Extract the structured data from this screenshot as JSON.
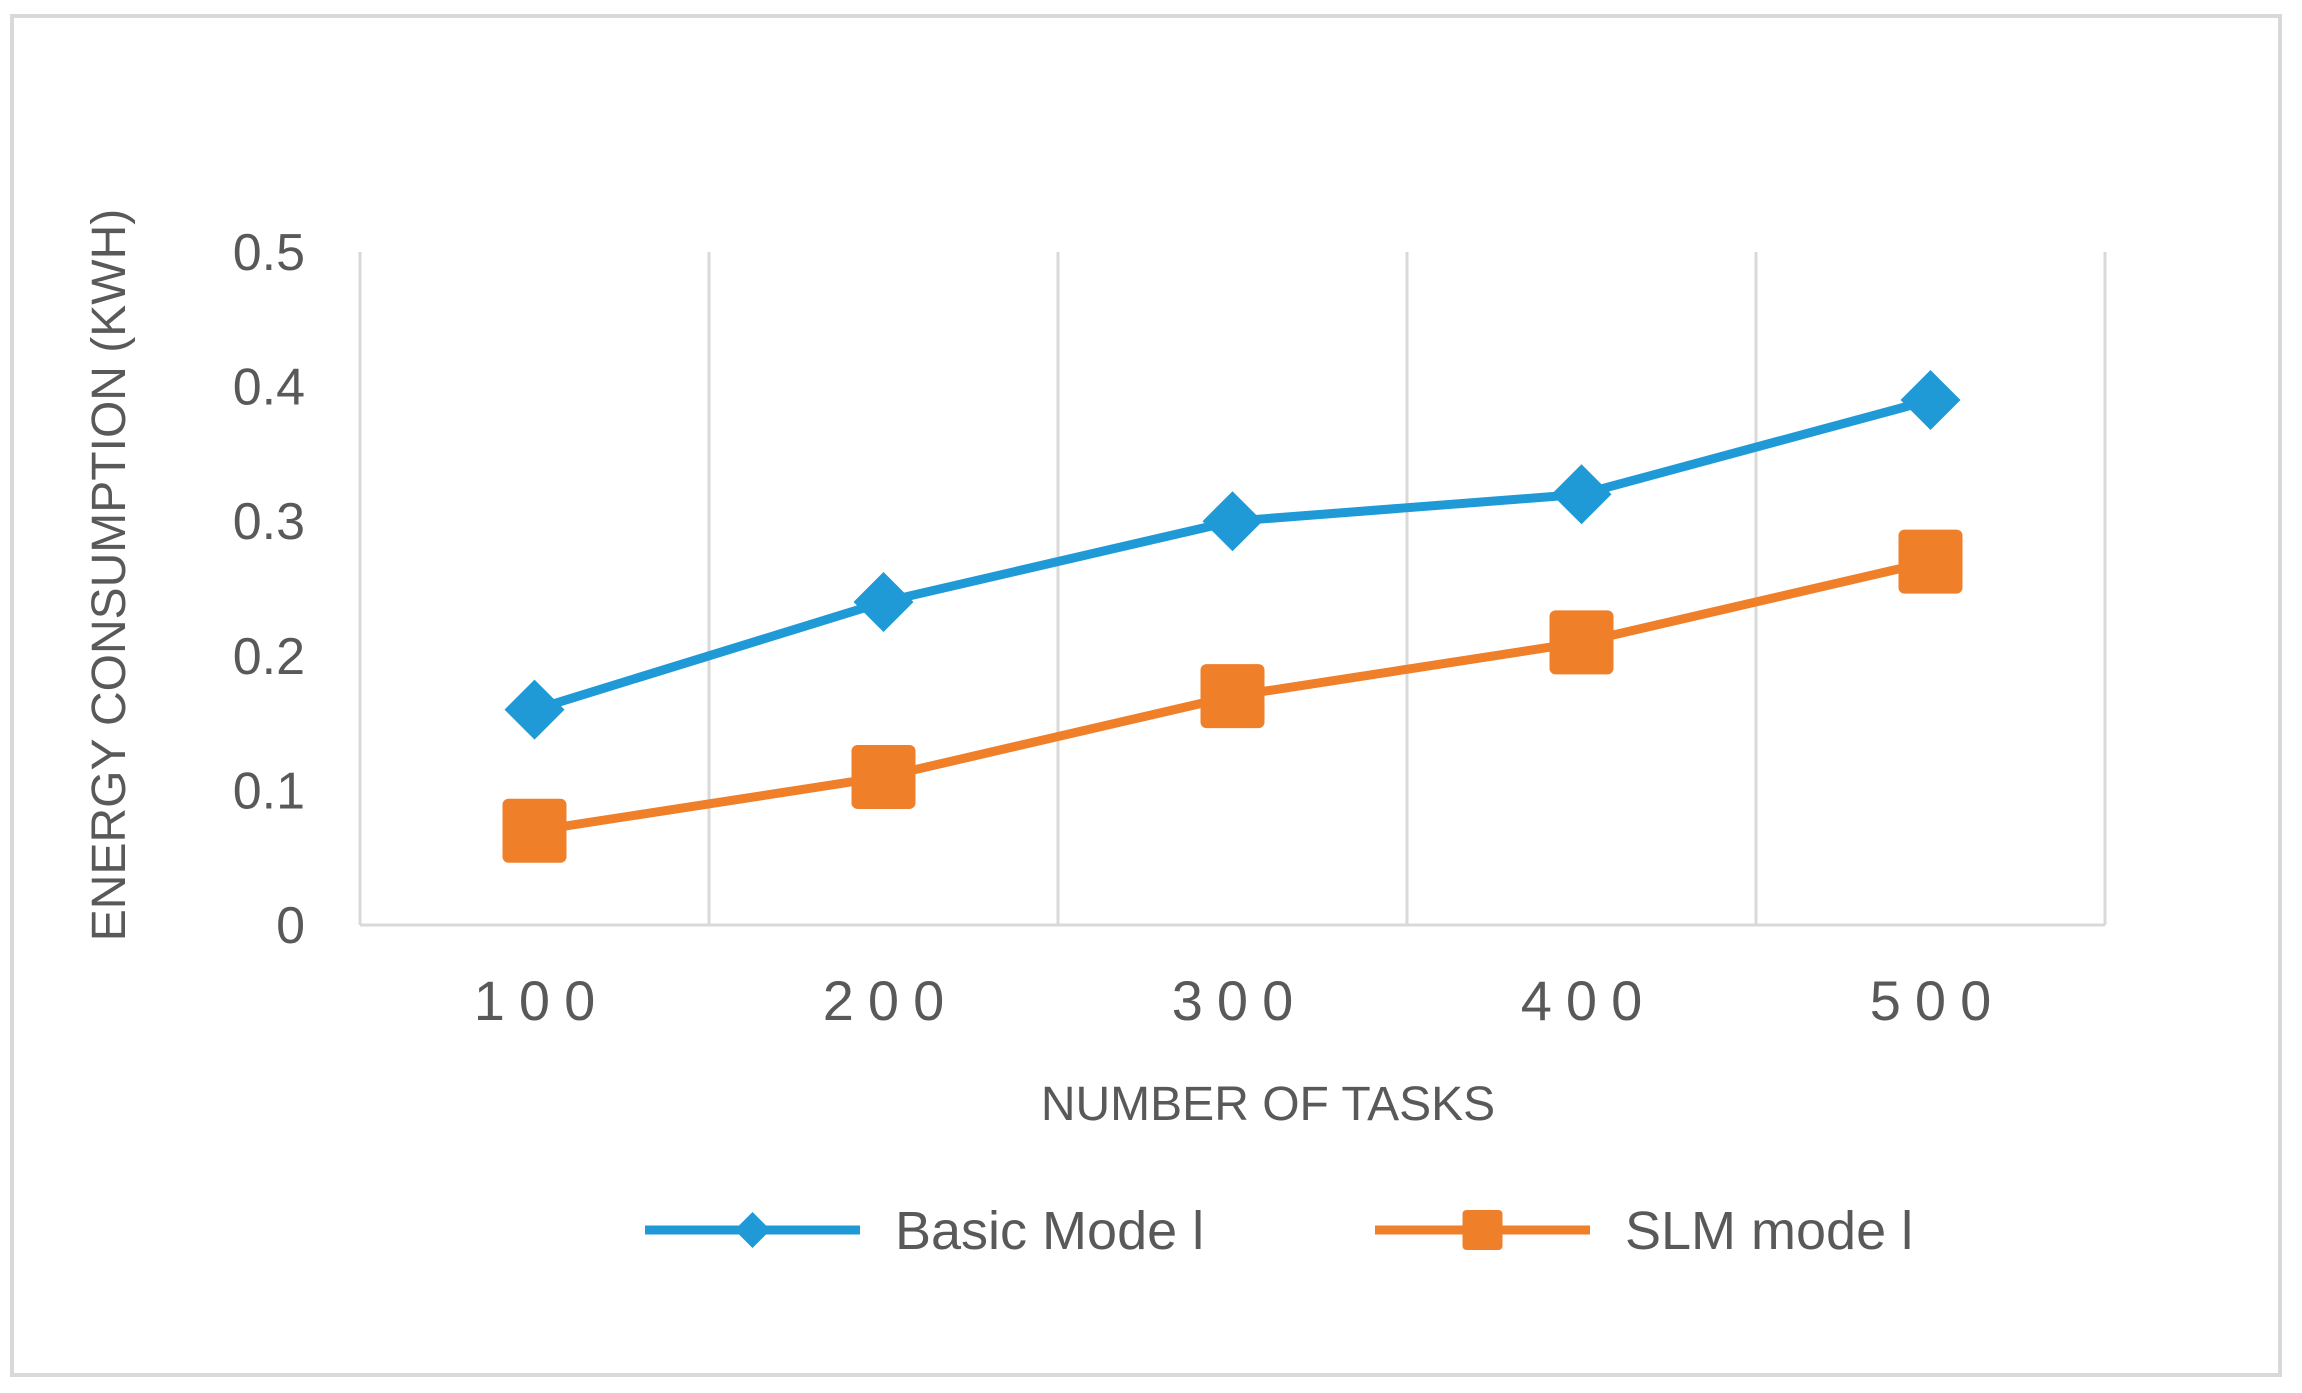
{
  "chart_data": {
    "type": "line",
    "categories": [
      "100",
      "200",
      "300",
      "400",
      "500"
    ],
    "series": [
      {
        "name": "Basic Mode l",
        "values": [
          0.16,
          0.24,
          0.3,
          0.32,
          0.39
        ],
        "color": "#1f9ad6",
        "marker": "diamond"
      },
      {
        "name": "SLM mode l",
        "values": [
          0.07,
          0.11,
          0.17,
          0.21,
          0.27
        ],
        "color": "#f07f2a",
        "marker": "square"
      }
    ],
    "y_ticks": [
      "0",
      "0.1",
      "0.2",
      "0.3",
      "0.4",
      "0.5"
    ],
    "ylim": [
      0,
      0.5
    ],
    "xlabel": "NUMBER OF TASKS",
    "ylabel": "ENERGY CONSUMPTION (KWH)",
    "grid": "vertical",
    "legend_position": "bottom"
  }
}
